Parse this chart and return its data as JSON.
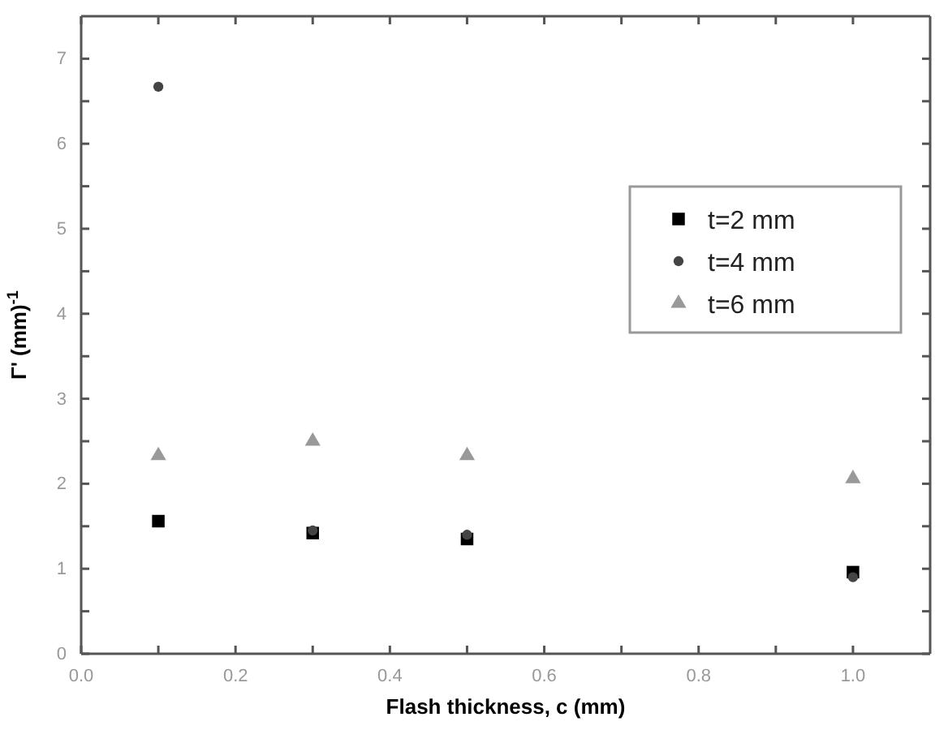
{
  "chart_data": {
    "type": "scatter",
    "xlabel": "Flash thickness, c (mm)",
    "ylabel": "Γ' (mm)$^{-1}$",
    "xlim": [
      0.0,
      1.1
    ],
    "ylim": [
      0,
      7.5
    ],
    "xticks": [
      {
        "value": 0,
        "label": "0.0"
      },
      {
        "value": 0.1,
        "label": null
      },
      {
        "value": 0.2,
        "label": "0.2"
      },
      {
        "value": 0.3,
        "label": null
      },
      {
        "value": 0.4,
        "label": "0.4"
      },
      {
        "value": 0.5,
        "label": null
      },
      {
        "value": 0.6,
        "label": "0.6"
      },
      {
        "value": 0.7,
        "label": null
      },
      {
        "value": 0.8,
        "label": "0.8"
      },
      {
        "value": 0.9,
        "label": null
      },
      {
        "value": 1.0,
        "label": "1.0"
      }
    ],
    "yticks": [
      0,
      {
        "value": 0.5,
        "label": null
      },
      1,
      {
        "value": 1.5,
        "label": null
      },
      2,
      {
        "value": 2.5,
        "label": null
      },
      3,
      {
        "value": 3.5,
        "label": null
      },
      4,
      {
        "value": 4.5,
        "label": null
      },
      5,
      {
        "value": 5.5,
        "label": null
      },
      6,
      {
        "value": 6.5,
        "label": null
      },
      7
    ],
    "x": [
      0.1,
      0.3,
      0.5,
      1.0
    ],
    "legend": "right",
    "grid": false,
    "series": [
      {
        "name": "t=2 mm",
        "color": "#000000",
        "marker": "square",
        "values": [
          1.56,
          1.42,
          1.35,
          0.96
        ]
      },
      {
        "name": "t=4 mm",
        "color": "#444444",
        "marker": "circle",
        "values": [
          6.67,
          1.45,
          1.4,
          0.9
        ]
      },
      {
        "name": "t=6 mm",
        "color": "#999999",
        "marker": "triangle",
        "values": [
          2.33,
          2.5,
          2.33,
          2.06
        ]
      }
    ]
  }
}
